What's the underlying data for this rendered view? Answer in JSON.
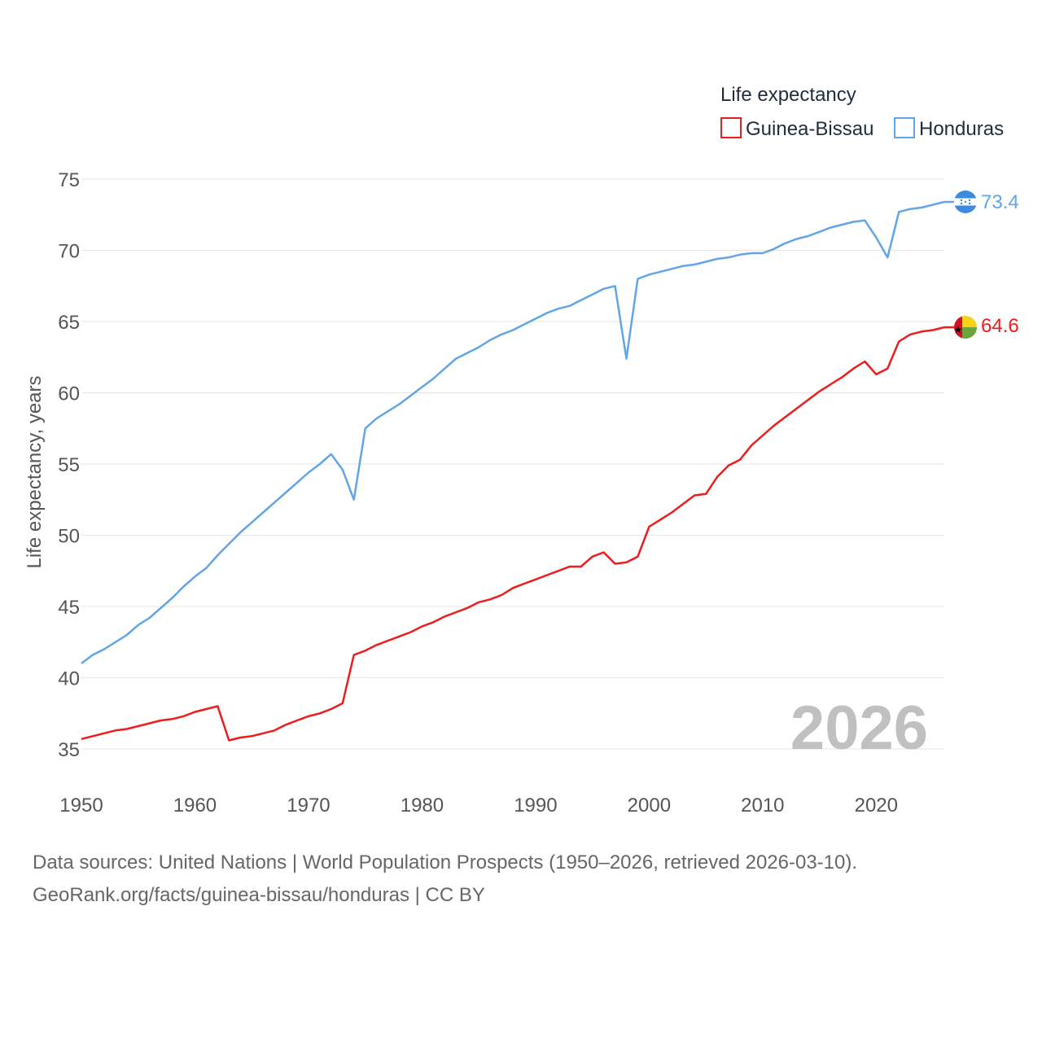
{
  "legend": {
    "title": "Life expectancy",
    "items": [
      {
        "name": "Guinea-Bissau",
        "color": "#ee1c1c"
      },
      {
        "name": "Honduras",
        "color": "#62a5e6"
      }
    ]
  },
  "year_label": "2026",
  "footer": {
    "line1": "Data sources: United Nations | World Population Prospects (1950–2026, retrieved 2026-03-10).",
    "line2": "GeoRank.org/facts/guinea-bissau/honduras | CC BY"
  },
  "chart_data": {
    "type": "line",
    "title": "Life expectancy",
    "xlabel": "",
    "ylabel": "Life expectancy, years",
    "xlim": [
      1950,
      2026
    ],
    "ylim": [
      33,
      76
    ],
    "xticks": [
      1950,
      1960,
      1970,
      1980,
      1990,
      2000,
      2010,
      2020
    ],
    "yticks": [
      35,
      40,
      45,
      50,
      55,
      60,
      65,
      70,
      75
    ],
    "grid": true,
    "legend_position": "top-right",
    "series": [
      {
        "name": "Guinea-Bissau",
        "color": "#ee1c1c",
        "end_label": "64.6",
        "flag": "guinea-bissau",
        "points": [
          [
            1950,
            35.7
          ],
          [
            1951,
            35.9
          ],
          [
            1952,
            36.1
          ],
          [
            1953,
            36.3
          ],
          [
            1954,
            36.4
          ],
          [
            1955,
            36.6
          ],
          [
            1956,
            36.8
          ],
          [
            1957,
            37.0
          ],
          [
            1958,
            37.1
          ],
          [
            1959,
            37.3
          ],
          [
            1960,
            37.6
          ],
          [
            1961,
            37.8
          ],
          [
            1962,
            38.0
          ],
          [
            1963,
            35.6
          ],
          [
            1964,
            35.8
          ],
          [
            1965,
            35.9
          ],
          [
            1966,
            36.1
          ],
          [
            1967,
            36.3
          ],
          [
            1968,
            36.7
          ],
          [
            1969,
            37.0
          ],
          [
            1970,
            37.3
          ],
          [
            1971,
            37.5
          ],
          [
            1972,
            37.8
          ],
          [
            1973,
            38.2
          ],
          [
            1974,
            41.6
          ],
          [
            1975,
            41.9
          ],
          [
            1976,
            42.3
          ],
          [
            1977,
            42.6
          ],
          [
            1978,
            42.9
          ],
          [
            1979,
            43.2
          ],
          [
            1980,
            43.6
          ],
          [
            1981,
            43.9
          ],
          [
            1982,
            44.3
          ],
          [
            1983,
            44.6
          ],
          [
            1984,
            44.9
          ],
          [
            1985,
            45.3
          ],
          [
            1986,
            45.5
          ],
          [
            1987,
            45.8
          ],
          [
            1988,
            46.3
          ],
          [
            1989,
            46.6
          ],
          [
            1990,
            46.9
          ],
          [
            1991,
            47.2
          ],
          [
            1992,
            47.5
          ],
          [
            1993,
            47.8
          ],
          [
            1994,
            47.8
          ],
          [
            1995,
            48.5
          ],
          [
            1996,
            48.8
          ],
          [
            1997,
            48.0
          ],
          [
            1998,
            48.1
          ],
          [
            1999,
            48.5
          ],
          [
            2000,
            50.6
          ],
          [
            2001,
            51.1
          ],
          [
            2002,
            51.6
          ],
          [
            2003,
            52.2
          ],
          [
            2004,
            52.8
          ],
          [
            2005,
            52.9
          ],
          [
            2006,
            54.1
          ],
          [
            2007,
            54.9
          ],
          [
            2008,
            55.3
          ],
          [
            2009,
            56.3
          ],
          [
            2010,
            57.0
          ],
          [
            2011,
            57.7
          ],
          [
            2012,
            58.3
          ],
          [
            2013,
            58.9
          ],
          [
            2014,
            59.5
          ],
          [
            2015,
            60.1
          ],
          [
            2016,
            60.6
          ],
          [
            2017,
            61.1
          ],
          [
            2018,
            61.7
          ],
          [
            2019,
            62.2
          ],
          [
            2020,
            61.3
          ],
          [
            2021,
            61.7
          ],
          [
            2022,
            63.6
          ],
          [
            2023,
            64.1
          ],
          [
            2024,
            64.3
          ],
          [
            2025,
            64.4
          ],
          [
            2026,
            64.6
          ]
        ]
      },
      {
        "name": "Honduras",
        "color": "#62a5e6",
        "end_label": "73.4",
        "flag": "honduras",
        "points": [
          [
            1950,
            41.0
          ],
          [
            1951,
            41.6
          ],
          [
            1952,
            42.0
          ],
          [
            1953,
            42.5
          ],
          [
            1954,
            43.0
          ],
          [
            1955,
            43.7
          ],
          [
            1956,
            44.2
          ],
          [
            1957,
            44.9
          ],
          [
            1958,
            45.6
          ],
          [
            1959,
            46.4
          ],
          [
            1960,
            47.1
          ],
          [
            1961,
            47.7
          ],
          [
            1962,
            48.6
          ],
          [
            1963,
            49.4
          ],
          [
            1964,
            50.2
          ],
          [
            1965,
            50.9
          ],
          [
            1966,
            51.6
          ],
          [
            1967,
            52.3
          ],
          [
            1968,
            53.0
          ],
          [
            1969,
            53.7
          ],
          [
            1970,
            54.4
          ],
          [
            1971,
            55.0
          ],
          [
            1972,
            55.7
          ],
          [
            1973,
            54.6
          ],
          [
            1974,
            52.5
          ],
          [
            1975,
            57.5
          ],
          [
            1976,
            58.2
          ],
          [
            1977,
            58.7
          ],
          [
            1978,
            59.2
          ],
          [
            1979,
            59.8
          ],
          [
            1980,
            60.4
          ],
          [
            1981,
            61.0
          ],
          [
            1982,
            61.7
          ],
          [
            1983,
            62.4
          ],
          [
            1984,
            62.8
          ],
          [
            1985,
            63.2
          ],
          [
            1986,
            63.7
          ],
          [
            1987,
            64.1
          ],
          [
            1988,
            64.4
          ],
          [
            1989,
            64.8
          ],
          [
            1990,
            65.2
          ],
          [
            1991,
            65.6
          ],
          [
            1992,
            65.9
          ],
          [
            1993,
            66.1
          ],
          [
            1994,
            66.5
          ],
          [
            1995,
            66.9
          ],
          [
            1996,
            67.3
          ],
          [
            1997,
            67.5
          ],
          [
            1998,
            62.4
          ],
          [
            1999,
            68.0
          ],
          [
            2000,
            68.3
          ],
          [
            2001,
            68.5
          ],
          [
            2002,
            68.7
          ],
          [
            2003,
            68.9
          ],
          [
            2004,
            69.0
          ],
          [
            2005,
            69.2
          ],
          [
            2006,
            69.4
          ],
          [
            2007,
            69.5
          ],
          [
            2008,
            69.7
          ],
          [
            2009,
            69.8
          ],
          [
            2010,
            69.8
          ],
          [
            2011,
            70.1
          ],
          [
            2012,
            70.5
          ],
          [
            2013,
            70.8
          ],
          [
            2014,
            71.0
          ],
          [
            2015,
            71.3
          ],
          [
            2016,
            71.6
          ],
          [
            2017,
            71.8
          ],
          [
            2018,
            72.0
          ],
          [
            2019,
            72.1
          ],
          [
            2020,
            70.9
          ],
          [
            2021,
            69.5
          ],
          [
            2022,
            72.7
          ],
          [
            2023,
            72.9
          ],
          [
            2024,
            73.0
          ],
          [
            2025,
            73.2
          ],
          [
            2026,
            73.4
          ]
        ]
      }
    ]
  }
}
